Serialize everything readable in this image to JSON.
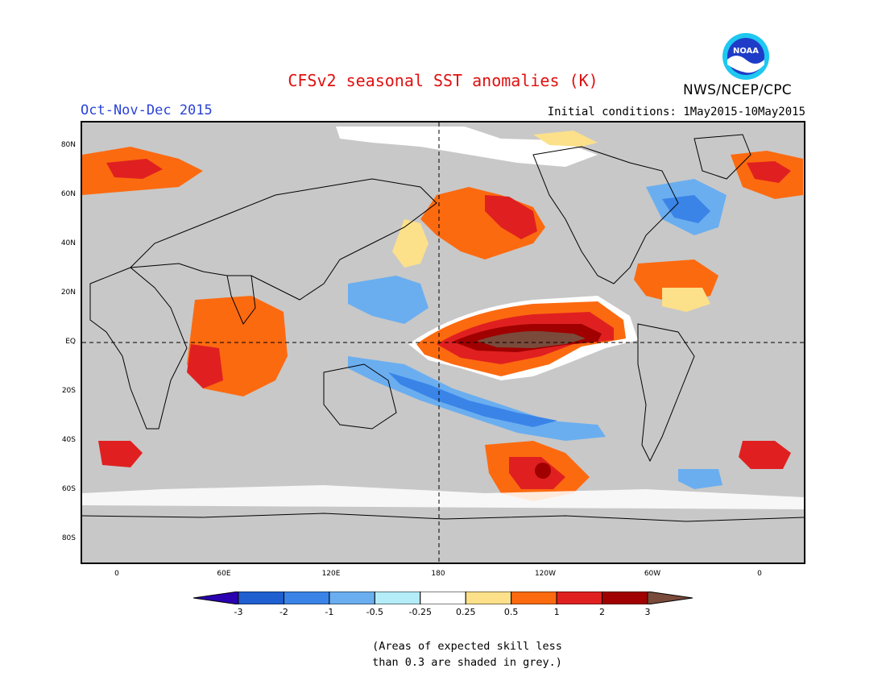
{
  "title": "CFSv2 seasonal SST anomalies (K)",
  "season": "Oct-Nov-Dec 2015",
  "initial_conditions": "Initial conditions: 1May2015-10May2015",
  "agency": "NWS/NCEP/CPC",
  "logo_text": "NOAA",
  "lat_labels": [
    "80N",
    "60N",
    "40N",
    "20N",
    "EQ",
    "20S",
    "40S",
    "60S",
    "80S"
  ],
  "lon_labels": [
    "0",
    "60E",
    "120E",
    "180",
    "120W",
    "60W",
    "0"
  ],
  "colorbar": {
    "labels": [
      "-3",
      "-2",
      "-1",
      "-0.5",
      "-0.25",
      "0.25",
      "0.5",
      "1",
      "2",
      "3"
    ],
    "colors": [
      "#2a00b0",
      "#1f5fd0",
      "#3a84e8",
      "#6aaef0",
      "#b4ecf8",
      "#ffffff",
      "#fce08a",
      "#fc6a10",
      "#e02020",
      "#a00000",
      "#7a4a3a"
    ]
  },
  "note_line1": "(Areas of expected skill less",
  "note_line2": "than 0.3 are shaded in grey.)"
}
